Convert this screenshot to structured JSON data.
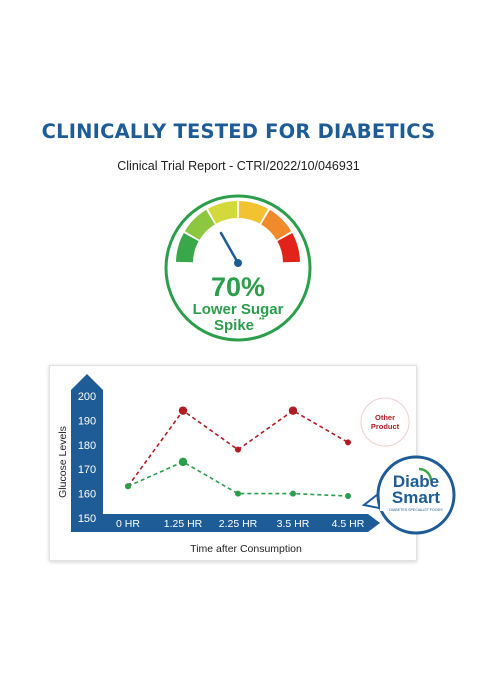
{
  "header": {
    "title": "CLINICALLY TESTED FOR DIABETICS",
    "subtitle": "Clinical Trial Report - CTRI/2022/10/046931"
  },
  "badge": {
    "percent": "70%",
    "line1": "Lower Sugar",
    "line2": "Spike",
    "line2_mark": "**",
    "gauge_colors": [
      "#3aa84a",
      "#8dc63f",
      "#d4d93b",
      "#f2c230",
      "#f08a2a",
      "#e2231a"
    ]
  },
  "brand": {
    "top": "Diabe",
    "bottom": "Smart",
    "tagline": "DIABETES SPECIALIST FOODS",
    "color": "#1d5c96",
    "accent": "#3aa84a"
  },
  "chart_data": {
    "type": "line",
    "xlabel": "Time after Consumption",
    "ylabel": "Glucose Levels",
    "categories": [
      "0 HR",
      "1.25 HR",
      "2.25 HR",
      "3.5 HR",
      "4.5 HR"
    ],
    "yticks": [
      "200",
      "190",
      "180",
      "170",
      "160",
      "150"
    ],
    "ylim": [
      150,
      200
    ],
    "grid": false,
    "series": [
      {
        "name": "Other Product",
        "color": "#b01e23",
        "values": [
          163,
          194,
          178,
          194,
          181
        ]
      },
      {
        "name": "DiabeSmart",
        "color": "#2a9e4b",
        "values": [
          163,
          173,
          160,
          160,
          159
        ]
      }
    ]
  }
}
